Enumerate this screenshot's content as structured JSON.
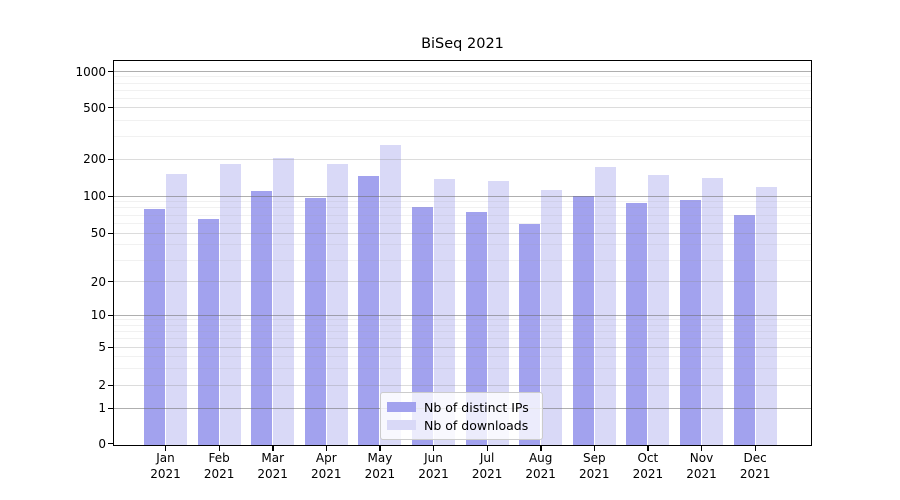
{
  "title": "BiSeq 2021",
  "legend": {
    "items": [
      {
        "label": "Nb of distinct IPs",
        "color": "#a2a2ee"
      },
      {
        "label": "Nb of downloads",
        "color": "#d9d9f7"
      }
    ]
  },
  "chart_data": {
    "type": "bar",
    "title": "BiSeq 2021",
    "categories": [
      "Jan 2021",
      "Feb 2021",
      "Mar 2021",
      "Apr 2021",
      "May 2021",
      "Jun 2021",
      "Jul 2021",
      "Aug 2021",
      "Sep 2021",
      "Oct 2021",
      "Nov 2021",
      "Dec 2021"
    ],
    "series": [
      {
        "name": "Nb of distinct IPs",
        "color": "#a2a2ee",
        "values": [
          78,
          65,
          110,
          96,
          145,
          82,
          74,
          59,
          100,
          88,
          93,
          70
        ]
      },
      {
        "name": "Nb of downloads",
        "color": "#d9d9f7",
        "values": [
          150,
          182,
          203,
          182,
          255,
          138,
          132,
          112,
          172,
          148,
          141,
          118
        ]
      }
    ],
    "xlabel": "",
    "ylabel": "",
    "yscale": "symlog",
    "yticks": [
      0,
      1,
      2,
      5,
      10,
      20,
      50,
      100,
      200,
      500,
      1000
    ],
    "ylim": [
      0,
      1300
    ],
    "grid": "on",
    "legend_position": "lower center inside"
  }
}
